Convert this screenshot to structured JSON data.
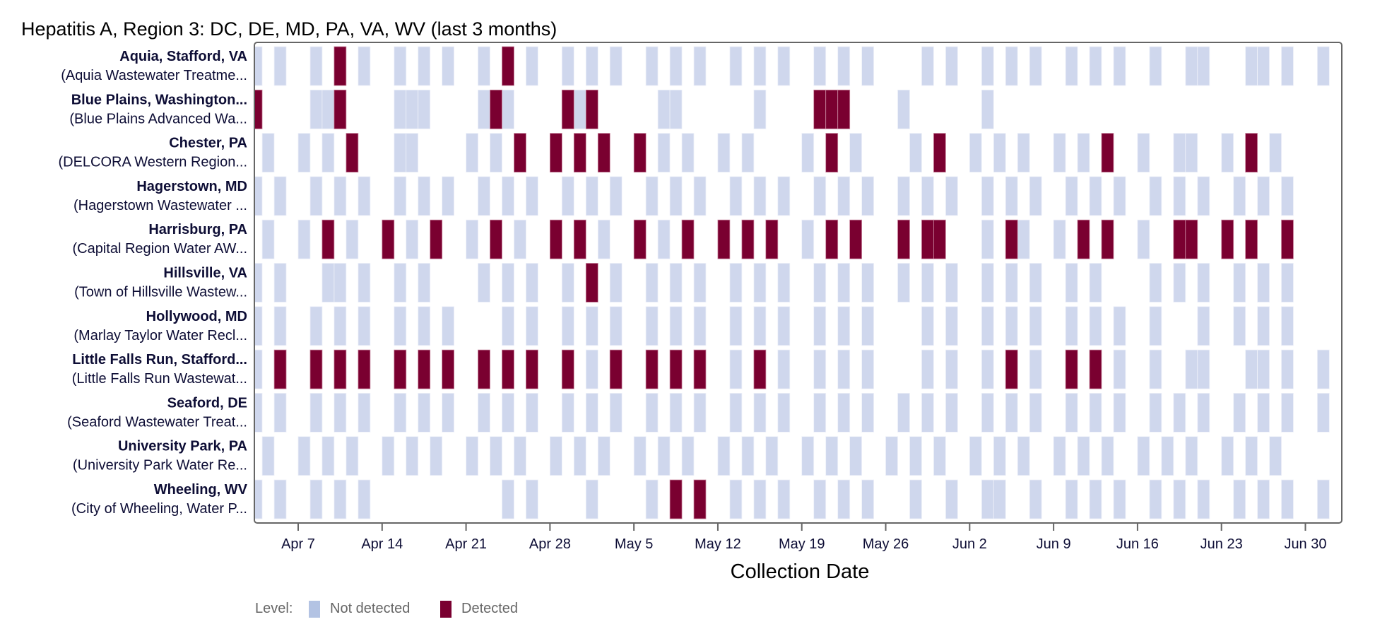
{
  "chart_data": {
    "type": "heatmap",
    "title": "Hepatitis A, Region 3: DC, DE, MD, PA, VA, WV (last 3 months)",
    "xlabel": "Collection Date",
    "ylabel": "",
    "x_ticks": [
      "Apr 7",
      "Apr 14",
      "Apr 21",
      "Apr 28",
      "May 5",
      "May 12",
      "May 19",
      "May 26",
      "Jun 2",
      "Jun 9",
      "Jun 16",
      "Jun 23",
      "Jun 30"
    ],
    "xlim": [
      "Apr 3",
      "Jul 2"
    ],
    "grid": false,
    "legend": {
      "title": "Level:",
      "placement": "bottom-left",
      "items": [
        {
          "label": "Not detected",
          "color": "#b3c3e3"
        },
        {
          "label": "Detected",
          "color": "#7a0030"
        }
      ]
    },
    "colors": {
      "not_detected": "#cfd7ed",
      "detected": "#7a0030"
    },
    "series": [
      {
        "name": "Aquia, Stafford, VA",
        "facility": "(Aquia Wastewater Treatme...",
        "not_detected": [
          "Apr 3",
          "Apr 5",
          "Apr 8",
          "Apr 12",
          "Apr 15",
          "Apr 17",
          "Apr 19",
          "Apr 22",
          "Apr 26",
          "Apr 29",
          "May 1",
          "May 3",
          "May 6",
          "May 8",
          "May 10",
          "May 13",
          "May 15",
          "May 17",
          "May 20",
          "May 22",
          "May 24",
          "May 29",
          "May 31",
          "Jun 3",
          "Jun 5",
          "Jun 7",
          "Jun 10",
          "Jun 12",
          "Jun 14",
          "Jun 17",
          "Jun 20",
          "Jun 21",
          "Jun 25",
          "Jun 26",
          "Jun 28",
          "Jul 1"
        ],
        "detected": [
          "Apr 10",
          "Apr 24"
        ]
      },
      {
        "name": "Blue Plains, Washington...",
        "facility": "(Blue Plains Advanced Wa...",
        "not_detected": [
          "Apr 8",
          "Apr 9",
          "Apr 15",
          "Apr 16",
          "Apr 17",
          "Apr 22",
          "Apr 24",
          "Apr 30",
          "May 7",
          "May 8",
          "May 15",
          "May 27",
          "Jun 3"
        ],
        "detected": [
          "Apr 3",
          "Apr 10",
          "Apr 23",
          "Apr 29",
          "May 1",
          "May 20",
          "May 21",
          "May 22"
        ]
      },
      {
        "name": "Chester, PA",
        "facility": "(DELCORA Western Region...",
        "not_detected": [
          "Apr 4",
          "Apr 7",
          "Apr 9",
          "Apr 15",
          "Apr 16",
          "Apr 21",
          "Apr 23",
          "May 7",
          "May 9",
          "May 12",
          "May 14",
          "May 19",
          "May 23",
          "May 28",
          "Jun 2",
          "Jun 4",
          "Jun 6",
          "Jun 9",
          "Jun 11",
          "Jun 16",
          "Jun 19",
          "Jun 20",
          "Jun 23",
          "Jun 27"
        ],
        "detected": [
          "Apr 11",
          "Apr 25",
          "Apr 28",
          "Apr 30",
          "May 2",
          "May 5",
          "May 21",
          "May 30",
          "Jun 13",
          "Jun 25"
        ]
      },
      {
        "name": "Hagerstown, MD",
        "facility": "(Hagerstown Wastewater ...",
        "not_detected": [
          "Apr 3",
          "Apr 5",
          "Apr 8",
          "Apr 10",
          "Apr 12",
          "Apr 15",
          "Apr 17",
          "Apr 19",
          "Apr 22",
          "Apr 24",
          "Apr 26",
          "Apr 29",
          "May 1",
          "May 3",
          "May 6",
          "May 8",
          "May 10",
          "May 13",
          "May 15",
          "May 17",
          "May 20",
          "May 22",
          "May 24",
          "May 27",
          "May 29",
          "May 31",
          "Jun 3",
          "Jun 5",
          "Jun 7",
          "Jun 10",
          "Jun 12",
          "Jun 14",
          "Jun 17",
          "Jun 19",
          "Jun 21",
          "Jun 24",
          "Jun 26",
          "Jun 28"
        ],
        "detected": []
      },
      {
        "name": "Harrisburg, PA",
        "facility": "(Capital Region Water AW...",
        "not_detected": [
          "Apr 4",
          "Apr 7",
          "Apr 11",
          "Apr 16",
          "Apr 21",
          "Apr 25",
          "May 2",
          "May 7",
          "May 19",
          "Jun 3",
          "Jun 6",
          "Jun 9",
          "Jun 16"
        ],
        "detected": [
          "Apr 9",
          "Apr 14",
          "Apr 18",
          "Apr 23",
          "Apr 28",
          "Apr 30",
          "May 5",
          "May 9",
          "May 12",
          "May 14",
          "May 16",
          "May 21",
          "May 23",
          "May 27",
          "May 29",
          "May 30",
          "Jun 5",
          "Jun 11",
          "Jun 13",
          "Jun 19",
          "Jun 20",
          "Jun 23",
          "Jun 25",
          "Jun 28"
        ]
      },
      {
        "name": "Hillsville, VA",
        "facility": "(Town of Hillsville Wastew...",
        "not_detected": [
          "Apr 3",
          "Apr 5",
          "Apr 9",
          "Apr 10",
          "Apr 12",
          "Apr 15",
          "Apr 17",
          "Apr 22",
          "Apr 24",
          "Apr 26",
          "Apr 29",
          "May 3",
          "May 6",
          "May 8",
          "May 10",
          "May 13",
          "May 15",
          "May 17",
          "May 20",
          "May 22",
          "May 24",
          "May 27",
          "May 29",
          "May 31",
          "Jun 3",
          "Jun 5",
          "Jun 7",
          "Jun 10",
          "Jun 12",
          "Jun 17",
          "Jun 19",
          "Jun 21",
          "Jun 24",
          "Jun 26",
          "Jun 28"
        ],
        "detected": [
          "May 1"
        ]
      },
      {
        "name": "Hollywood, MD",
        "facility": "(Marlay Taylor Water Recl...",
        "not_detected": [
          "Apr 3",
          "Apr 5",
          "Apr 8",
          "Apr 10",
          "Apr 12",
          "Apr 15",
          "Apr 17",
          "Apr 19",
          "Apr 24",
          "Apr 26",
          "Apr 29",
          "May 1",
          "May 3",
          "May 6",
          "May 8",
          "May 10",
          "May 13",
          "May 15",
          "May 17",
          "May 20",
          "May 22",
          "May 24",
          "May 29",
          "May 31",
          "Jun 3",
          "Jun 5",
          "Jun 7",
          "Jun 10",
          "Jun 12",
          "Jun 14",
          "Jun 17",
          "Jun 21",
          "Jun 24",
          "Jun 26",
          "Jun 28"
        ],
        "detected": []
      },
      {
        "name": "Little Falls Run, Stafford...",
        "facility": "(Little Falls Run Wastewat...",
        "not_detected": [
          "Apr 3",
          "May 1",
          "May 13",
          "May 17",
          "May 20",
          "May 22",
          "May 24",
          "May 29",
          "May 31",
          "Jun 3",
          "Jun 7",
          "Jun 14",
          "Jun 17",
          "Jun 20",
          "Jun 21",
          "Jun 25",
          "Jun 26",
          "Jun 28",
          "Jul 1"
        ],
        "detected": [
          "Apr 5",
          "Apr 8",
          "Apr 10",
          "Apr 12",
          "Apr 15",
          "Apr 17",
          "Apr 19",
          "Apr 22",
          "Apr 24",
          "Apr 26",
          "Apr 29",
          "May 3",
          "May 6",
          "May 8",
          "May 10",
          "May 15",
          "Jun 5",
          "Jun 10",
          "Jun 12"
        ]
      },
      {
        "name": "Seaford, DE",
        "facility": "(Seaford Wastewater Treat...",
        "not_detected": [
          "Apr 3",
          "Apr 5",
          "Apr 8",
          "Apr 10",
          "Apr 12",
          "Apr 15",
          "Apr 17",
          "Apr 19",
          "Apr 22",
          "Apr 24",
          "Apr 26",
          "Apr 29",
          "May 1",
          "May 3",
          "May 6",
          "May 8",
          "May 10",
          "May 13",
          "May 15",
          "May 17",
          "May 20",
          "May 22",
          "May 24",
          "May 27",
          "May 29",
          "May 31",
          "Jun 3",
          "Jun 5",
          "Jun 7",
          "Jun 10",
          "Jun 12",
          "Jun 14",
          "Jun 17",
          "Jun 19",
          "Jun 21",
          "Jun 24",
          "Jun 26",
          "Jun 28",
          "Jul 1"
        ],
        "detected": []
      },
      {
        "name": "University Park, PA",
        "facility": "(University Park Water Re...",
        "not_detected": [
          "Apr 4",
          "Apr 7",
          "Apr 9",
          "Apr 11",
          "Apr 14",
          "Apr 16",
          "Apr 18",
          "Apr 21",
          "Apr 23",
          "Apr 25",
          "Apr 28",
          "Apr 30",
          "May 2",
          "May 5",
          "May 7",
          "May 9",
          "May 12",
          "May 14",
          "May 16",
          "May 19",
          "May 21",
          "May 23",
          "May 26",
          "May 28",
          "May 30",
          "Jun 2",
          "Jun 4",
          "Jun 6",
          "Jun 9",
          "Jun 11",
          "Jun 13",
          "Jun 16",
          "Jun 18",
          "Jun 20",
          "Jun 23",
          "Jun 25",
          "Jun 27"
        ],
        "detected": []
      },
      {
        "name": "Wheeling, WV",
        "facility": "(City of Wheeling, Water P...",
        "not_detected": [
          "Apr 3",
          "Apr 5",
          "Apr 8",
          "Apr 10",
          "Apr 12",
          "Apr 24",
          "Apr 26",
          "May 1",
          "May 6",
          "May 13",
          "May 15",
          "May 17",
          "May 20",
          "May 22",
          "May 24",
          "May 28",
          "May 31",
          "Jun 3",
          "Jun 4",
          "Jun 7",
          "Jun 10",
          "Jun 12",
          "Jun 14",
          "Jun 17",
          "Jun 19",
          "Jun 21",
          "Jun 24",
          "Jun 26",
          "Jun 28",
          "Jul 1"
        ],
        "detected": [
          "May 8",
          "May 10"
        ]
      }
    ]
  }
}
